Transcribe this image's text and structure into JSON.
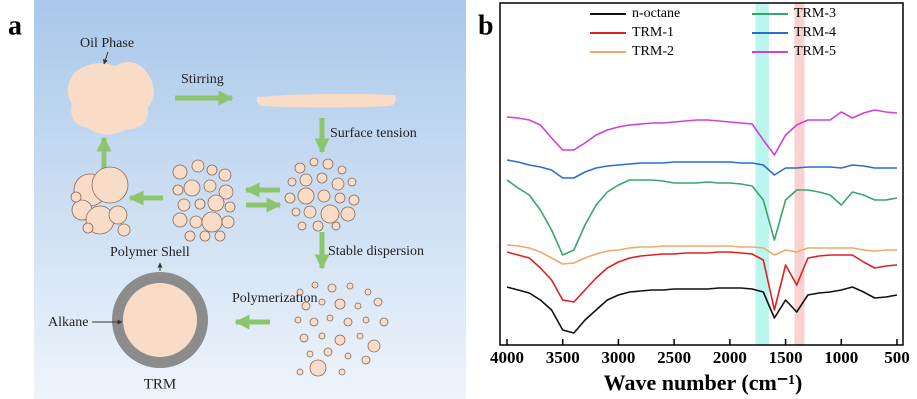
{
  "diagram": {
    "panel_label": "a",
    "labels": {
      "oil_phase": "Oil Phase",
      "stirring": "Stirring",
      "surface_tension": "Surface tension",
      "stable_dispersion": "Stable dispersion",
      "polymer_shell": "Polymer Shell",
      "polymerization": "Polymerization",
      "alkane": "Alkane",
      "trm": "TRM"
    }
  },
  "chart_data": {
    "type": "line",
    "panel_label": "b",
    "xlabel": "Wave number (cm⁻¹)",
    "x": [
      4000,
      3900,
      3800,
      3700,
      3600,
      3500,
      3400,
      3300,
      3200,
      3100,
      3000,
      2900,
      2800,
      2700,
      2600,
      2500,
      2400,
      2300,
      2200,
      2100,
      2000,
      1900,
      1800,
      1700,
      1600,
      1500,
      1400,
      1300,
      1200,
      1100,
      1000,
      900,
      800,
      700,
      600,
      500
    ],
    "xlim": [
      4000,
      500
    ],
    "xticks": [
      4000,
      3500,
      3000,
      2500,
      2000,
      1500,
      1000,
      500
    ],
    "highlights": [
      {
        "xrange": [
          1770,
          1650
        ],
        "color": "#aef5ea"
      },
      {
        "xrange": [
          1420,
          1330
        ],
        "color": "#f8c9c9"
      }
    ],
    "series": [
      {
        "name": "n-octane",
        "color": "#111111",
        "values": [
          58,
          55,
          52,
          45,
          35,
          15,
          12,
          25,
          35,
          45,
          50,
          53,
          54,
          55,
          55,
          56,
          56,
          56,
          56,
          57,
          57,
          57,
          56,
          53,
          27,
          45,
          33,
          50,
          52,
          53,
          55,
          58,
          53,
          47,
          48,
          50
        ]
      },
      {
        "name": "TRM-1",
        "color": "#e02020",
        "values": [
          93,
          90,
          87,
          77,
          65,
          45,
          43,
          55,
          67,
          77,
          83,
          87,
          89,
          90,
          91,
          91,
          92,
          92,
          92,
          93,
          93,
          92,
          91,
          85,
          35,
          80,
          60,
          87,
          89,
          90,
          90,
          90,
          83,
          77,
          79,
          80
        ]
      },
      {
        "name": "TRM-2",
        "color": "#f0a868",
        "values": [
          100,
          99,
          97,
          93,
          87,
          81,
          82,
          87,
          91,
          94,
          95,
          97,
          98,
          98,
          99,
          99,
          99,
          99,
          99,
          99,
          99,
          98,
          98,
          97,
          90,
          95,
          93,
          97,
          97,
          97,
          97,
          97,
          95,
          94,
          95,
          95
        ]
      },
      {
        "name": "TRM-3",
        "color": "#3aa56a",
        "values": [
          165,
          157,
          150,
          135,
          115,
          90,
          95,
          120,
          140,
          153,
          160,
          165,
          165,
          165,
          164,
          162,
          162,
          162,
          163,
          162,
          162,
          161,
          159,
          145,
          105,
          145,
          155,
          155,
          153,
          150,
          140,
          153,
          150,
          145,
          145,
          147
        ]
      },
      {
        "name": "TRM-4",
        "color": "#2a6fcf",
        "values": [
          185,
          183,
          180,
          178,
          175,
          167,
          167,
          173,
          177,
          179,
          180,
          181,
          182,
          182,
          182,
          183,
          183,
          183,
          183,
          183,
          183,
          182,
          182,
          180,
          170,
          177,
          177,
          178,
          178,
          178,
          177,
          180,
          179,
          177,
          177,
          177
        ]
      },
      {
        "name": "TRM-5",
        "color": "#d040d8",
        "values": [
          228,
          227,
          225,
          220,
          207,
          195,
          195,
          202,
          210,
          215,
          218,
          220,
          221,
          222,
          222,
          223,
          224,
          225,
          225,
          224,
          223,
          222,
          221,
          205,
          190,
          210,
          220,
          225,
          225,
          225,
          233,
          227,
          232,
          235,
          233,
          232
        ]
      }
    ]
  }
}
